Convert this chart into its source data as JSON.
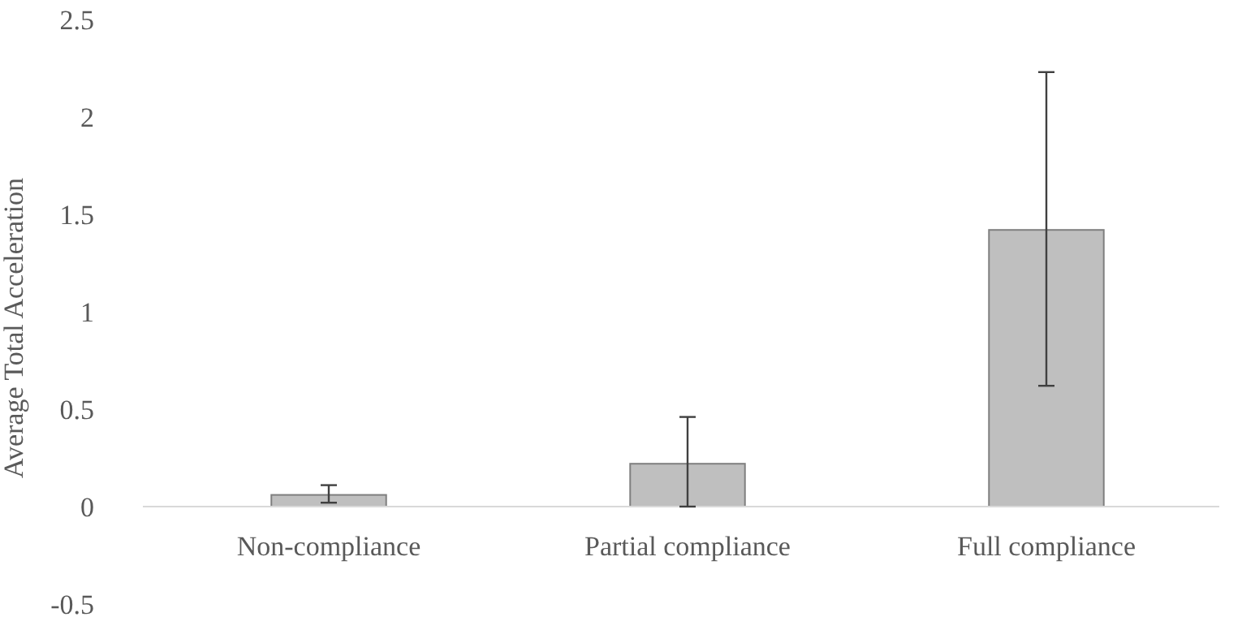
{
  "chart_data": {
    "type": "bar",
    "ylabel": "Average Total Acceleration",
    "categories": [
      "Non-compliance",
      "Partial compliance",
      "Full compliance"
    ],
    "values": [
      0.06,
      0.22,
      1.42
    ],
    "errors": [
      [
        0.02,
        0.11
      ],
      [
        0,
        0.46
      ],
      [
        0.62,
        2.23
      ]
    ],
    "color": "#bfbfbf",
    "ylim": [
      -0.5,
      2.5
    ],
    "yticks": [
      -0.5,
      0,
      0.5,
      1,
      1.5,
      2,
      2.5
    ],
    "grid": false
  }
}
